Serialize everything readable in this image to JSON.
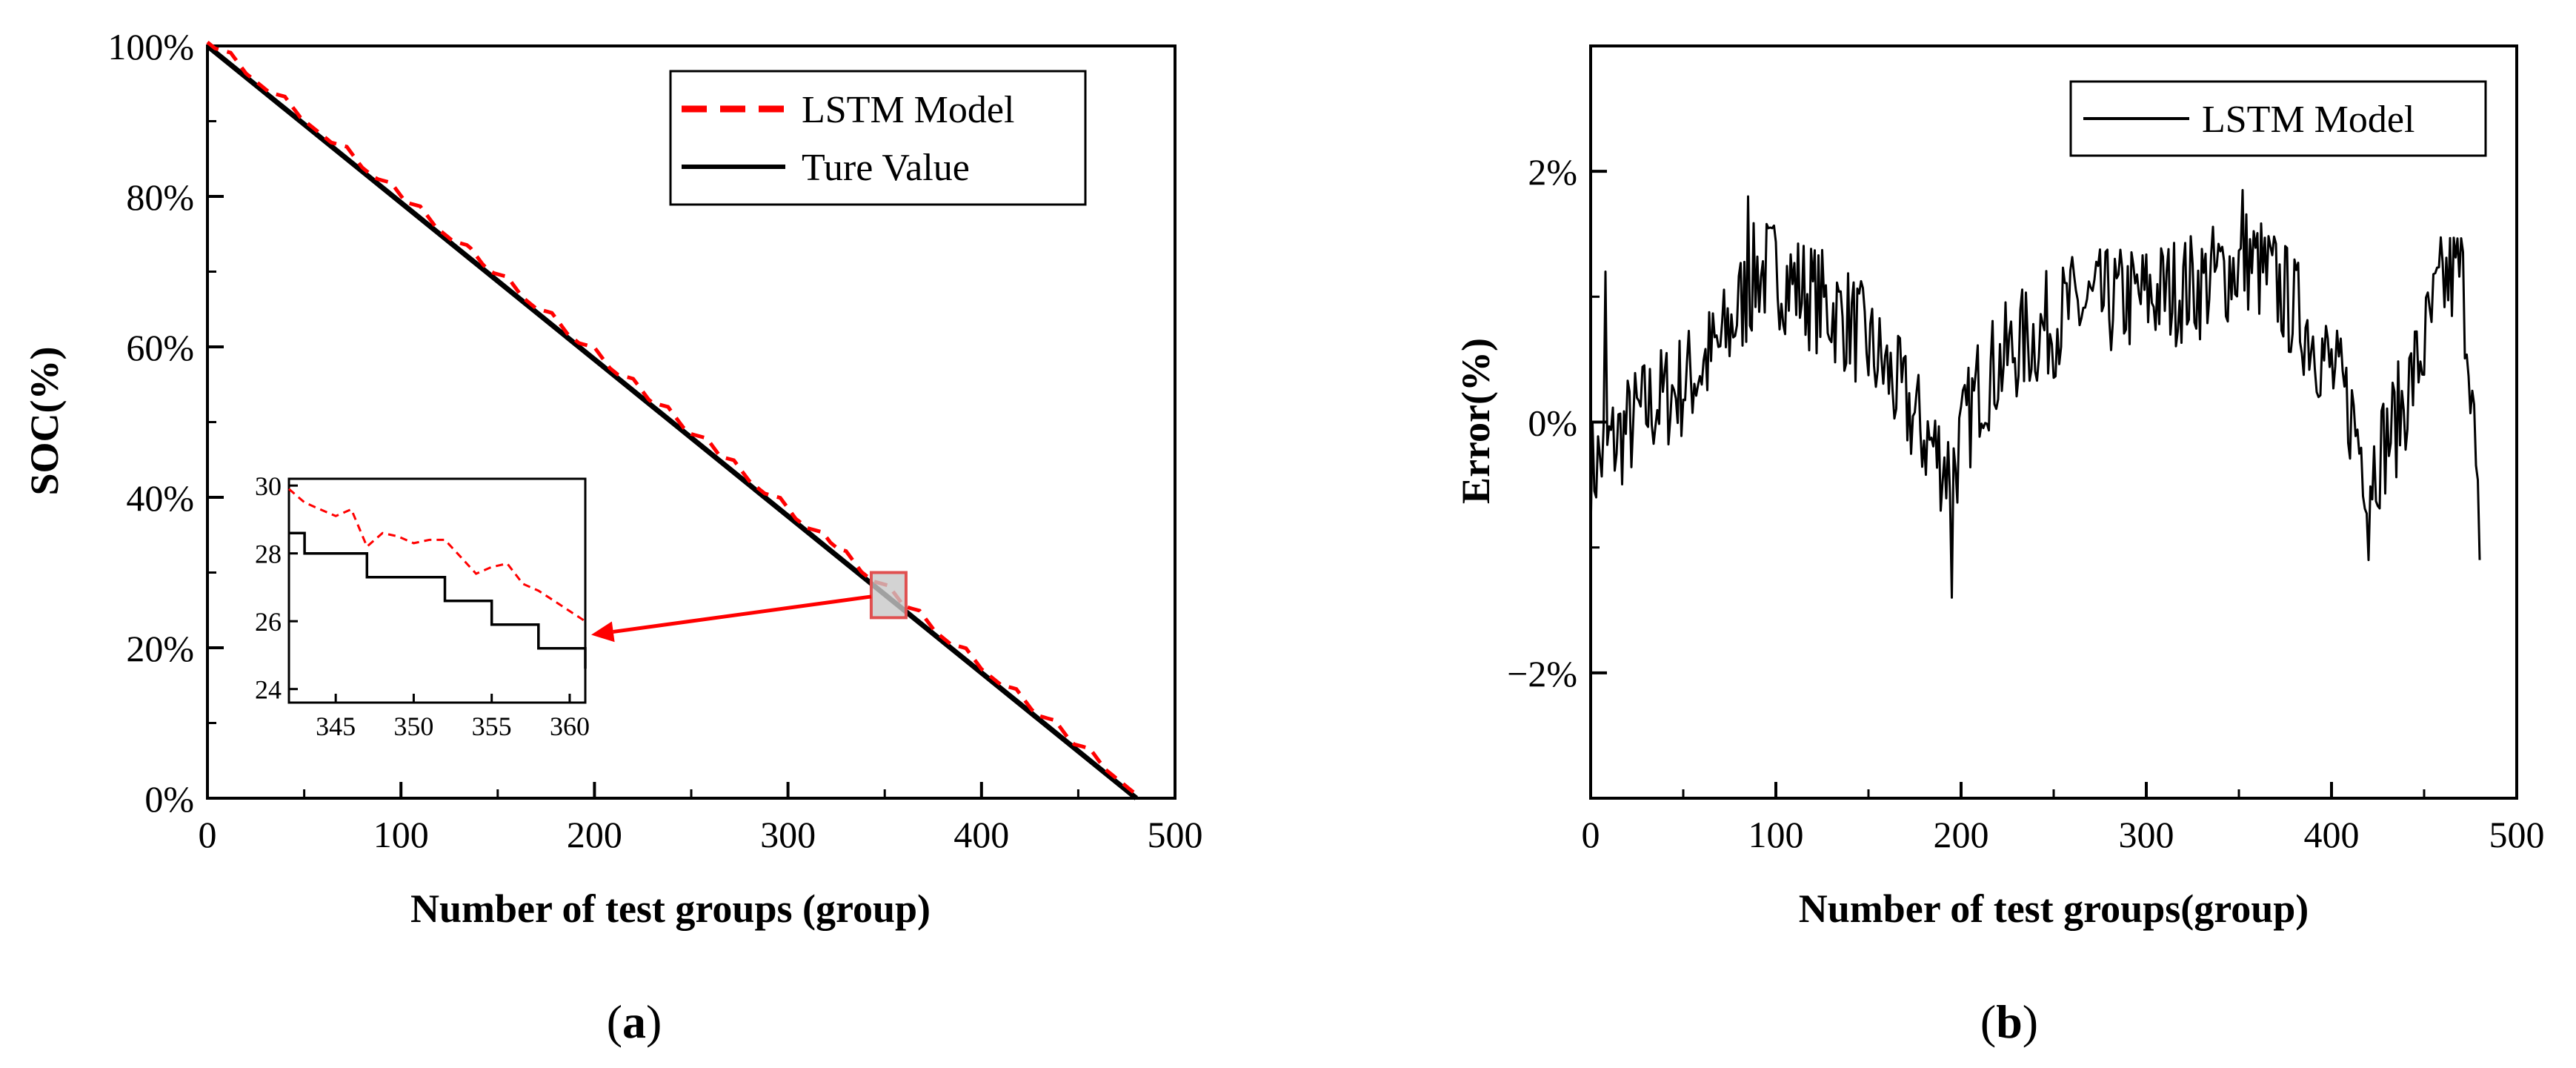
{
  "figure": {
    "panel_a_label": "(a)",
    "panel_a_letter": "a",
    "panel_b_label": "(b)",
    "panel_b_letter": "b"
  },
  "colors": {
    "lstm": "#ff0000",
    "true_value": "#000000",
    "highlight_fill": "#c8c8c8",
    "highlight_stroke": "#e05050"
  },
  "chart_data": [
    {
      "type": "line",
      "panel": "a",
      "xlabel": "Number of test groups (group)",
      "ylabel": "SOC(%)",
      "xlim": [
        0,
        500
      ],
      "ylim": [
        0,
        100
      ],
      "x_ticks": [
        0,
        100,
        200,
        300,
        400,
        500
      ],
      "x_tick_labels": [
        "0",
        "100",
        "200",
        "300",
        "400",
        "500"
      ],
      "y_ticks": [
        0,
        20,
        40,
        60,
        80,
        100
      ],
      "y_tick_labels": [
        "0%",
        "20%",
        "40%",
        "60%",
        "80%",
        "100%"
      ],
      "legend": {
        "position": "top-right",
        "entries": [
          "LSTM Model",
          "Ture Value"
        ]
      },
      "series": [
        {
          "name": "LSTM Model",
          "style": "dashed",
          "x": [
            0,
            480
          ],
          "y": [
            100.5,
            0.5
          ]
        },
        {
          "name": "Ture Value",
          "style": "solid",
          "x": [
            0,
            480
          ],
          "y": [
            100,
            0
          ]
        }
      ],
      "highlight_region": {
        "x": [
          343,
          361
        ],
        "y": [
          24,
          30
        ]
      },
      "inset": {
        "xlim": [
          342,
          361
        ],
        "ylim": [
          23.6,
          30.2
        ],
        "x_ticks": [
          345,
          350,
          355,
          360
        ],
        "x_tick_labels": [
          "345",
          "350",
          "355",
          "360"
        ],
        "y_ticks": [
          24,
          26,
          28,
          30
        ],
        "y_tick_labels": [
          "24",
          "26",
          "28",
          "30"
        ],
        "series": [
          {
            "name": "LSTM Model",
            "style": "dashed",
            "x": [
              342,
              343,
              344,
              345,
              346,
              347,
              348,
              349,
              350,
              351,
              352,
              353,
              354,
              355,
              356,
              357,
              358,
              359,
              360,
              361
            ],
            "y": [
              29.9,
              29.5,
              29.3,
              29.1,
              29.3,
              28.2,
              28.6,
              28.5,
              28.3,
              28.4,
              28.4,
              27.9,
              27.4,
              27.6,
              27.7,
              27.1,
              26.9,
              26.6,
              26.3,
              26.0
            ]
          },
          {
            "name": "Ture Value",
            "style": "step",
            "x": [
              342,
              343,
              344,
              345,
              346,
              347,
              348,
              349,
              350,
              351,
              352,
              353,
              354,
              355,
              356,
              357,
              358,
              359,
              360,
              361
            ],
            "y": [
              28.6,
              28.0,
              28.0,
              28.0,
              28.0,
              27.3,
              27.3,
              27.3,
              27.3,
              27.3,
              26.6,
              26.6,
              26.6,
              25.9,
              25.9,
              25.9,
              25.2,
              25.2,
              25.2,
              24.6
            ]
          }
        ]
      }
    },
    {
      "type": "line",
      "panel": "b",
      "xlabel": "Number of test groups(group)",
      "ylabel": "Error(%)",
      "xlim": [
        0,
        500
      ],
      "ylim": [
        -3,
        3
      ],
      "x_ticks": [
        0,
        100,
        200,
        300,
        400,
        500
      ],
      "x_tick_labels": [
        "0",
        "100",
        "200",
        "300",
        "400",
        "500"
      ],
      "y_ticks": [
        -2,
        0,
        2
      ],
      "y_tick_labels": [
        "−2%",
        "0%",
        "2%"
      ],
      "legend": {
        "position": "top-right",
        "entries": [
          "LSTM Model"
        ]
      },
      "series": [
        {
          "name": "LSTM Model",
          "noise_amplitude": 0.45,
          "baseline": {
            "x": [
              0,
              10,
              30,
              50,
              70,
              90,
              100,
              120,
              140,
              160,
              180,
              195,
              210,
              230,
              260,
              300,
              330,
              355,
              370,
              390,
              410,
              420,
              435,
              450,
              460,
              470,
              475,
              480
            ],
            "y": [
              -0.4,
              -0.2,
              0.1,
              0.3,
              0.6,
              1.2,
              1.2,
              1.0,
              0.8,
              0.4,
              -0.1,
              -0.4,
              0.3,
              0.6,
              0.9,
              1.0,
              1.1,
              1.3,
              1.1,
              0.7,
              0.1,
              -0.4,
              0.0,
              0.6,
              1.1,
              1.2,
              0.5,
              -1.1
            ]
          },
          "peaks": [
            {
              "x": 8,
              "y": 1.2
            },
            {
              "x": 85,
              "y": 1.8
            },
            {
              "x": 195,
              "y": -1.4
            },
            {
              "x": 352,
              "y": 1.85
            },
            {
              "x": 420,
              "y": -1.1
            },
            {
              "x": 480,
              "y": -1.1
            }
          ]
        }
      ]
    }
  ]
}
